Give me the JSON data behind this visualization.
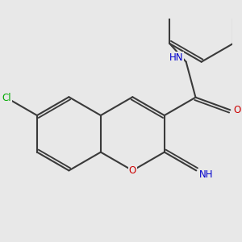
{
  "background_color": "#e8e8e8",
  "bond_color": "#3a3a3a",
  "bond_width": 1.5,
  "dbo": 0.055,
  "atom_colors": {
    "O": "#cc0000",
    "N": "#0000cc",
    "Cl": "#00aa00",
    "H": "#4a6080"
  },
  "font_size": 8.5
}
